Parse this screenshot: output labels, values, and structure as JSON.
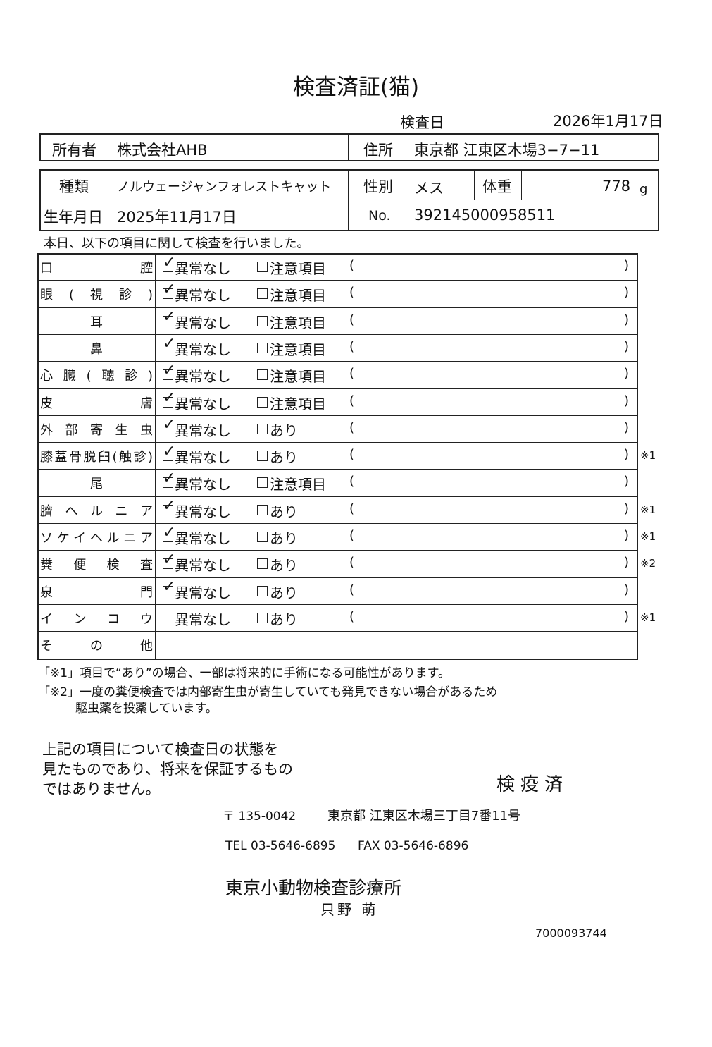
{
  "title": "検査済証(猫)",
  "exam_date": {
    "label": "検査日",
    "value": "2026年1月17日"
  },
  "owner": {
    "label": "所有者",
    "value": "株式会社AHB"
  },
  "address": {
    "label": "住所",
    "value": "東京都 江東区木場3−7−11"
  },
  "kind": {
    "label": "種類",
    "value": "ノルウェージャンフォレストキャット"
  },
  "sex": {
    "label": "性別",
    "value": "メス"
  },
  "weight": {
    "label": "体重",
    "value": "778",
    "unit": "g"
  },
  "birth": {
    "label": "生年月日",
    "value": "2025年11月17日"
  },
  "number": {
    "label": "No.",
    "value": "392145000958511"
  },
  "intro": "本日、以下の項目に関して検査を行いました。",
  "brackets": [
    "(",
    ")"
  ],
  "items": [
    {
      "name": "口腔",
      "normal": "異常なし",
      "checked": true,
      "other": "注意項目"
    },
    {
      "name": "眼(視診)",
      "normal": "異常なし",
      "checked": true,
      "other": "注意項目"
    },
    {
      "name": "耳",
      "normal": "異常なし",
      "checked": true,
      "other": "注意項目"
    },
    {
      "name": "鼻",
      "normal": "異常なし",
      "checked": true,
      "other": "注意項目"
    },
    {
      "name": "心臓(聴診)",
      "normal": "異常なし",
      "checked": true,
      "other": "注意項目"
    },
    {
      "name": "皮膚",
      "normal": "異常なし",
      "checked": true,
      "other": "注意項目"
    },
    {
      "name": "外部寄生虫",
      "normal": "異常なし",
      "checked": true,
      "other": "あり"
    },
    {
      "name": "膝蓋骨脱臼(触診)",
      "normal": "異常なし",
      "checked": true,
      "other": "あり",
      "mark": "※1"
    },
    {
      "name": "尾",
      "normal": "異常なし",
      "checked": true,
      "other": "注意項目"
    },
    {
      "name": "臍ヘルニア",
      "normal": "異常なし",
      "checked": true,
      "other": "あり",
      "mark": "※1"
    },
    {
      "name": "ソケイヘルニア",
      "normal": "異常なし",
      "checked": true,
      "other": "あり",
      "mark": "※1"
    },
    {
      "name": "糞便検査",
      "normal": "異常なし",
      "checked": true,
      "other": "あり",
      "mark": "※2"
    },
    {
      "name": "泉門",
      "normal": "異常なし",
      "checked": true,
      "other": "あり"
    },
    {
      "name": "インコウ",
      "normal": "異常なし",
      "checked": false,
      "other": "あり",
      "mark": "※1"
    }
  ],
  "other_row": "その他",
  "notes": [
    "「※1」項目で“あり”の場合、一部は将来的に手術になる可能性があります。",
    "「※2」一度の糞便検査では内部寄生虫が寄生していても発見できない場合があるため",
    "駆虫薬を投薬しています。"
  ],
  "disclaimer": [
    "上記の項目について検査日の状態を",
    "見たものであり、将来を保証するもの",
    "ではありません。"
  ],
  "stamp": "検疫済",
  "footer": {
    "postal": "〒 135-0042",
    "address": "東京都 江東区木場三丁目7番11号",
    "tel": "TEL 03-5646-6895",
    "fax": "FAX 03-5646-6896",
    "clinic": "東京小動物検査診療所",
    "doctor": "只野 萌",
    "code": "7000093744"
  }
}
